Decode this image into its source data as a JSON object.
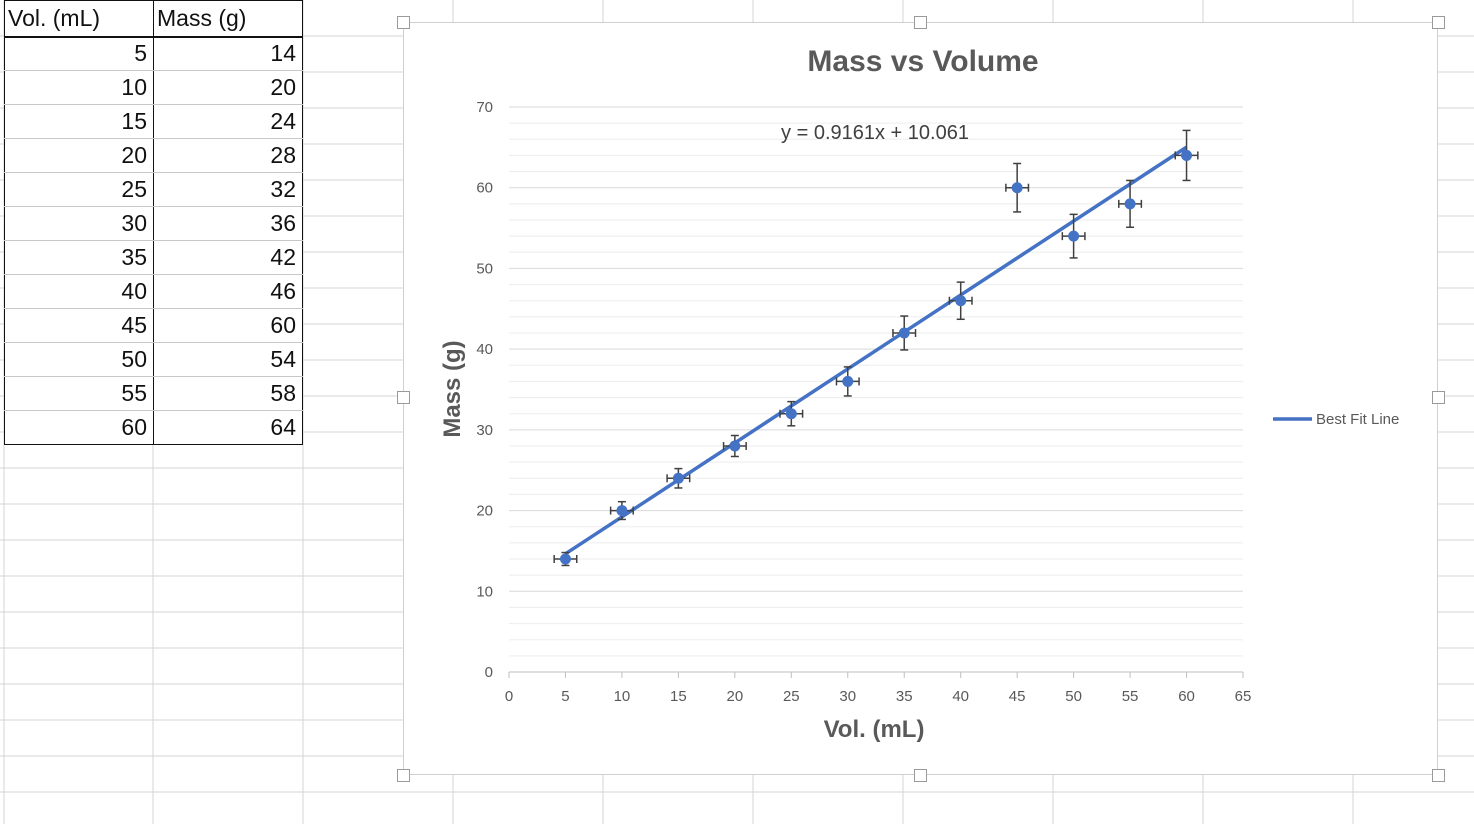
{
  "table": {
    "headers": [
      "Vol. (mL)",
      "Mass (g)"
    ],
    "rows": [
      [
        5,
        14
      ],
      [
        10,
        20
      ],
      [
        15,
        24
      ],
      [
        20,
        28
      ],
      [
        25,
        32
      ],
      [
        30,
        36
      ],
      [
        35,
        42
      ],
      [
        40,
        46
      ],
      [
        45,
        60
      ],
      [
        50,
        54
      ],
      [
        55,
        58
      ],
      [
        60,
        64
      ]
    ]
  },
  "chart_data": {
    "type": "scatter",
    "title": "Mass vs Volume",
    "xlabel": "Vol. (mL)",
    "ylabel": "Mass (g)",
    "xlim": [
      0,
      65
    ],
    "ylim": [
      0,
      70
    ],
    "x_ticks": [
      0,
      5,
      10,
      15,
      20,
      25,
      30,
      35,
      40,
      45,
      50,
      55,
      60,
      65
    ],
    "y_ticks": [
      0,
      10,
      20,
      30,
      40,
      50,
      60,
      70
    ],
    "x": [
      5,
      10,
      15,
      20,
      25,
      30,
      35,
      40,
      45,
      50,
      55,
      60
    ],
    "y": [
      14,
      20,
      24,
      28,
      32,
      36,
      42,
      46,
      60,
      54,
      58,
      64
    ],
    "y_error": 3.0,
    "y_error_approx": [
      0.8,
      1.1,
      1.2,
      1.3,
      1.5,
      1.8,
      2.1,
      2.3,
      3.0,
      2.7,
      2.9,
      3.1
    ],
    "x_error": 1,
    "series": [
      {
        "name": "Best Fit Line",
        "x": [
          5,
          60
        ],
        "y": [
          14.64,
          65.03
        ]
      }
    ],
    "trendline_equation": "y = 0.9161x + 10.061",
    "legend_position": "right",
    "grid": true,
    "colors": {
      "series": "#4472C4",
      "error_bar": "#404040",
      "gridline": "#d9d9d9",
      "minor_gridline": "#ededed"
    }
  }
}
